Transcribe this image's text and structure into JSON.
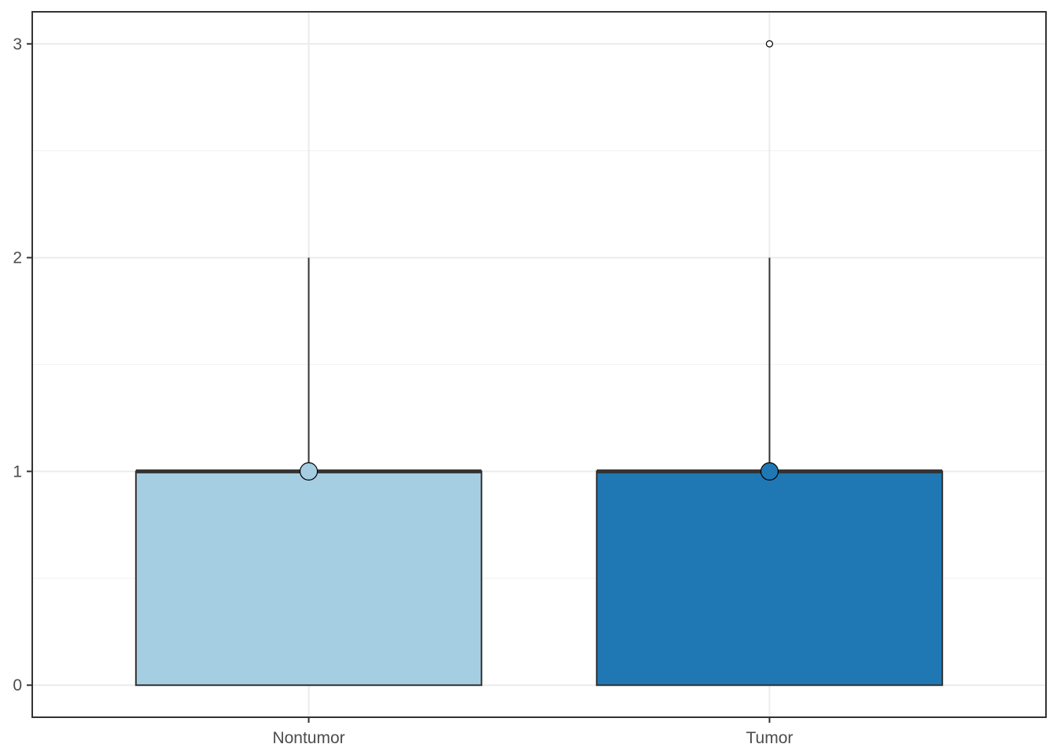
{
  "chart_data": {
    "type": "box",
    "title": "",
    "xlabel": "",
    "ylabel": "",
    "ylim": [
      -0.15,
      3.15
    ],
    "y_ticks": [
      0,
      1,
      2,
      3
    ],
    "y_tick_labels": [
      "0",
      "1",
      "2",
      "3"
    ],
    "grid": true,
    "categories": [
      "Nontumor",
      "Tumor"
    ],
    "boxes": [
      {
        "category": "Nontumor",
        "lower_whisker": 0,
        "q1": 0,
        "median": 1,
        "q3": 1,
        "upper_whisker": 2,
        "mean": 1,
        "outliers": [],
        "fill": "#A6CEE3"
      },
      {
        "category": "Tumor",
        "lower_whisker": 0,
        "q1": 0,
        "median": 1,
        "q3": 1,
        "upper_whisker": 2,
        "mean": 1,
        "outliers": [
          3
        ],
        "fill": "#1F78B4"
      }
    ],
    "colors": {
      "panel_border": "#333333",
      "grid_major": "#EBEBEB",
      "grid_minor": "#F2F2F2",
      "box_outline": "#333333",
      "tick_text": "#4D4D4D"
    }
  }
}
